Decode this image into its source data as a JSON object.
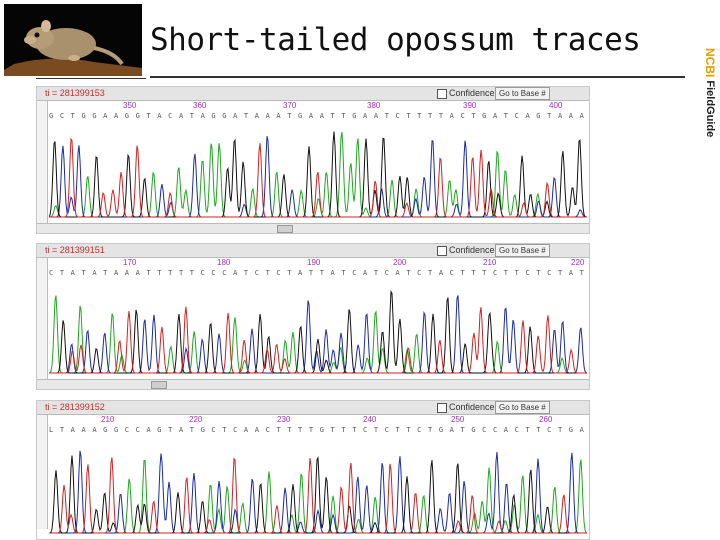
{
  "slide": {
    "title": "Short-tailed opossum traces",
    "side_brand": "NCBI",
    "side_label": "FieldGuide"
  },
  "panels": [
    {
      "ti_label": "ti = 281399153",
      "confidence_label": "Confidence",
      "goto_label": "Go to Base #",
      "positions": [
        "350",
        "360",
        "370",
        "380",
        "390",
        "400"
      ],
      "sequence": "G C T G G A A G G T A C A T A G G A T A A A T G A A T T G A A T C T T T T A C T G A T C A G T A A A T",
      "seed": 11
    },
    {
      "ti_label": "ti = 281399151",
      "confidence_label": "Confidence",
      "goto_label": "Go to Base #",
      "positions": [
        "170",
        "180",
        "190",
        "200",
        "210",
        "220"
      ],
      "sequence": "C T A T A T A A A T T T T T C C C A T C T C T A T T A T C A T C A T C T A C T T T C T T C T C T A T T A T A",
      "seed": 23
    },
    {
      "ti_label": "ti = 281399152",
      "confidence_label": "Confidence",
      "goto_label": "Go to Base #",
      "positions": [
        "210",
        "220",
        "230",
        "240",
        "250",
        "260"
      ],
      "sequence": "L T A A A G G C C A G T A T G C T C A A C T T T T G T T T C T C T T C T G A T G C C A C T T C T G A",
      "seed": 37
    }
  ],
  "trace_colors": {
    "A": "#1ea81e",
    "C": "#1a2aa8",
    "G": "#111111",
    "T": "#d42020"
  }
}
